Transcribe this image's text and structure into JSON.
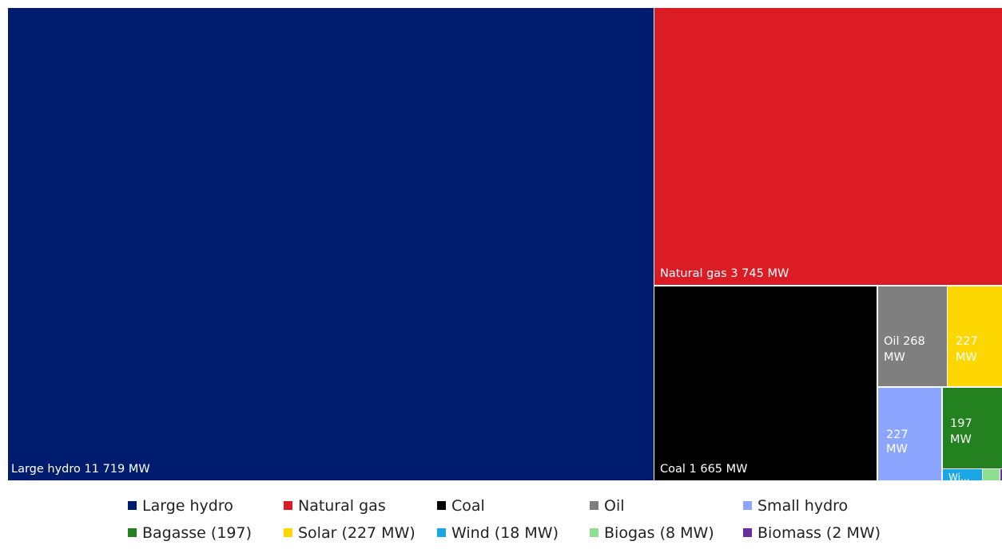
{
  "chart_data": {
    "type": "treemap",
    "units": "MW",
    "items": [
      {
        "name": "Large hydro",
        "value": 11719,
        "color": "#001C6E",
        "tile_label_lines": [
          "Large hydro 11 719 MW"
        ]
      },
      {
        "name": "Natural gas",
        "value": 3745,
        "color": "#DC1C24",
        "tile_label_lines": [
          "Natural gas 3 745 MW"
        ]
      },
      {
        "name": "Coal",
        "value": 1665,
        "color": "#000000",
        "tile_label_lines": [
          "Coal 1 665 MW"
        ]
      },
      {
        "name": "Oil",
        "value": 268,
        "color": "#7F7F7F",
        "tile_label_lines": [
          "Oil  268",
          "MW"
        ]
      },
      {
        "name": "Solar",
        "value": 227,
        "color": "#FFD700",
        "tile_label_lines": [
          "227",
          "MW"
        ]
      },
      {
        "name": "Small hydro",
        "value": 227,
        "color": "#8CA6FF",
        "tile_label_lines": [
          "227",
          "MW"
        ]
      },
      {
        "name": "Bagasse",
        "value": 197,
        "color": "#23811F",
        "tile_label_lines": [
          "197",
          "MW"
        ]
      },
      {
        "name": "Wind",
        "value": 18,
        "color": "#1AA7E6",
        "tile_label_lines": [
          "Wi..."
        ]
      },
      {
        "name": "Biogas",
        "value": 8,
        "color": "#8FDF90",
        "tile_label_lines": [
          ""
        ]
      },
      {
        "name": "Biomass",
        "value": 2,
        "color": "#6A2EA0",
        "tile_label_lines": [
          ""
        ]
      }
    ],
    "legend": [
      [
        "Large hydro",
        "Natural gas",
        "Coal",
        "Oil",
        "Small hydro"
      ],
      [
        "Bagasse (197)",
        "Solar (227 MW)",
        "Wind (18 MW)",
        "Biogas (8 MW)",
        "Biomass (2 MW)"
      ]
    ],
    "legend_colors": [
      [
        "#001C6E",
        "#DC1C24",
        "#000000",
        "#7F7F7F",
        "#8CA6FF"
      ],
      [
        "#23811F",
        "#FFD700",
        "#1AA7E6",
        "#8FDF90",
        "#6A2EA0"
      ]
    ],
    "legend_placement": "bottom"
  }
}
